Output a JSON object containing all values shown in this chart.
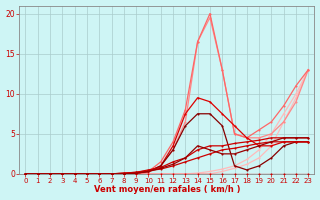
{
  "title": "",
  "xlabel": "Vent moyen/en rafales ( km/h )",
  "background_color": "#cef5f5",
  "grid_color": "#aacccc",
  "axis_color": "#888888",
  "text_color": "#cc0000",
  "xlim": [
    -0.5,
    23.5
  ],
  "ylim": [
    0,
    21
  ],
  "xticks": [
    0,
    1,
    2,
    3,
    4,
    5,
    6,
    7,
    8,
    9,
    10,
    11,
    12,
    13,
    14,
    15,
    16,
    17,
    18,
    19,
    20,
    21,
    22,
    23
  ],
  "yticks": [
    0,
    5,
    10,
    15,
    20
  ],
  "lines": [
    {
      "x": [
        0,
        1,
        2,
        3,
        4,
        5,
        6,
        7,
        8,
        9,
        10,
        11,
        12,
        13,
        14,
        15,
        16,
        17,
        18,
        19,
        20,
        21,
        22,
        23
      ],
      "y": [
        0,
        0,
        0,
        0,
        0,
        0,
        0,
        0,
        0,
        0,
        0,
        0,
        0,
        0,
        0,
        0,
        0.3,
        0.7,
        1.2,
        2.0,
        3.5,
        6.5,
        9.5,
        13.0
      ],
      "color": "#ffbbbb",
      "lw": 0.9
    },
    {
      "x": [
        0,
        1,
        2,
        3,
        4,
        5,
        6,
        7,
        8,
        9,
        10,
        11,
        12,
        13,
        14,
        15,
        16,
        17,
        18,
        19,
        20,
        21,
        22,
        23
      ],
      "y": [
        0,
        0,
        0,
        0,
        0,
        0,
        0,
        0,
        0,
        0,
        0,
        0,
        0,
        0,
        0.1,
        0.3,
        0.6,
        1.0,
        1.8,
        3.0,
        5.0,
        7.5,
        10.0,
        13.0
      ],
      "color": "#ffbbbb",
      "lw": 0.9
    },
    {
      "x": [
        0,
        1,
        2,
        3,
        4,
        5,
        6,
        7,
        8,
        9,
        10,
        11,
        12,
        13,
        14,
        15,
        16,
        17,
        18,
        19,
        20,
        21,
        22,
        23
      ],
      "y": [
        0,
        0,
        0,
        0,
        0,
        0,
        0,
        0,
        0,
        0,
        0.2,
        1.0,
        3.0,
        6.5,
        16.5,
        19.5,
        13.0,
        5.0,
        4.5,
        4.5,
        5.0,
        6.5,
        9.0,
        13.0
      ],
      "color": "#ff8888",
      "lw": 0.9
    },
    {
      "x": [
        0,
        1,
        2,
        3,
        4,
        5,
        6,
        7,
        8,
        9,
        10,
        11,
        12,
        13,
        14,
        15,
        16,
        17,
        18,
        19,
        20,
        21,
        22,
        23
      ],
      "y": [
        0,
        0,
        0,
        0,
        0,
        0,
        0,
        0,
        0,
        0,
        0.3,
        1.5,
        4.0,
        8.0,
        16.5,
        20.0,
        13.0,
        5.0,
        4.5,
        5.5,
        6.5,
        8.5,
        11.0,
        13.0
      ],
      "color": "#ff6666",
      "lw": 0.9
    },
    {
      "x": [
        0,
        1,
        2,
        3,
        4,
        5,
        6,
        7,
        8,
        9,
        10,
        11,
        12,
        13,
        14,
        15,
        16,
        17,
        18,
        19,
        20,
        21,
        22,
        23
      ],
      "y": [
        0,
        0,
        0,
        0,
        0,
        0,
        0,
        0,
        0,
        0.1,
        0.3,
        1.0,
        3.5,
        7.5,
        9.5,
        9.0,
        7.5,
        6.0,
        4.5,
        3.5,
        3.5,
        4.0,
        4.0,
        4.0
      ],
      "color": "#dd0000",
      "lw": 0.9
    },
    {
      "x": [
        0,
        1,
        2,
        3,
        4,
        5,
        6,
        7,
        8,
        9,
        10,
        11,
        12,
        13,
        14,
        15,
        16,
        17,
        18,
        19,
        20,
        21,
        22,
        23
      ],
      "y": [
        0,
        0,
        0,
        0,
        0,
        0,
        0,
        0,
        0,
        0.1,
        0.3,
        1.0,
        3.0,
        6.0,
        7.5,
        7.5,
        6.0,
        1.0,
        0.5,
        1.0,
        2.0,
        3.5,
        4.0,
        4.0
      ],
      "color": "#880000",
      "lw": 0.9
    },
    {
      "x": [
        0,
        1,
        2,
        3,
        4,
        5,
        6,
        7,
        8,
        9,
        10,
        11,
        12,
        13,
        14,
        15,
        16,
        17,
        18,
        19,
        20,
        21,
        22,
        23
      ],
      "y": [
        0,
        0,
        0,
        0,
        0,
        0,
        0,
        0,
        0.1,
        0.2,
        0.4,
        0.6,
        1.0,
        1.5,
        2.0,
        2.5,
        3.0,
        3.2,
        3.5,
        3.8,
        4.0,
        4.0,
        4.0,
        4.0
      ],
      "color": "#cc0000",
      "lw": 0.9
    },
    {
      "x": [
        0,
        1,
        2,
        3,
        4,
        5,
        6,
        7,
        8,
        9,
        10,
        11,
        12,
        13,
        14,
        15,
        16,
        17,
        18,
        19,
        20,
        21,
        22,
        23
      ],
      "y": [
        0,
        0,
        0,
        0,
        0,
        0,
        0,
        0,
        0.1,
        0.2,
        0.5,
        0.8,
        1.5,
        2.0,
        3.0,
        3.5,
        3.5,
        3.8,
        4.0,
        4.2,
        4.5,
        4.5,
        4.5,
        4.5
      ],
      "color": "#cc0000",
      "lw": 0.9
    },
    {
      "x": [
        0,
        1,
        2,
        3,
        4,
        5,
        6,
        7,
        8,
        9,
        10,
        11,
        12,
        13,
        14,
        15,
        16,
        17,
        18,
        19,
        20,
        21,
        22,
        23
      ],
      "y": [
        0,
        0,
        0,
        0,
        0,
        0,
        0,
        0,
        0,
        0,
        0,
        0,
        0,
        0,
        0,
        0,
        0,
        0,
        0,
        0,
        0,
        0,
        0,
        0
      ],
      "color": "#cc0000",
      "lw": 0.9
    },
    {
      "x": [
        0,
        1,
        2,
        3,
        4,
        5,
        6,
        7,
        8,
        9,
        10,
        11,
        12,
        13,
        14,
        15,
        16,
        17,
        18,
        19,
        20,
        21,
        22,
        23
      ],
      "y": [
        0,
        0,
        0,
        0,
        0,
        0,
        0,
        0,
        0,
        0.1,
        0.3,
        0.7,
        1.2,
        2.0,
        3.5,
        3.0,
        2.5,
        2.5,
        3.0,
        3.5,
        4.0,
        4.5,
        4.5,
        4.5
      ],
      "color": "#990000",
      "lw": 0.9
    }
  ]
}
